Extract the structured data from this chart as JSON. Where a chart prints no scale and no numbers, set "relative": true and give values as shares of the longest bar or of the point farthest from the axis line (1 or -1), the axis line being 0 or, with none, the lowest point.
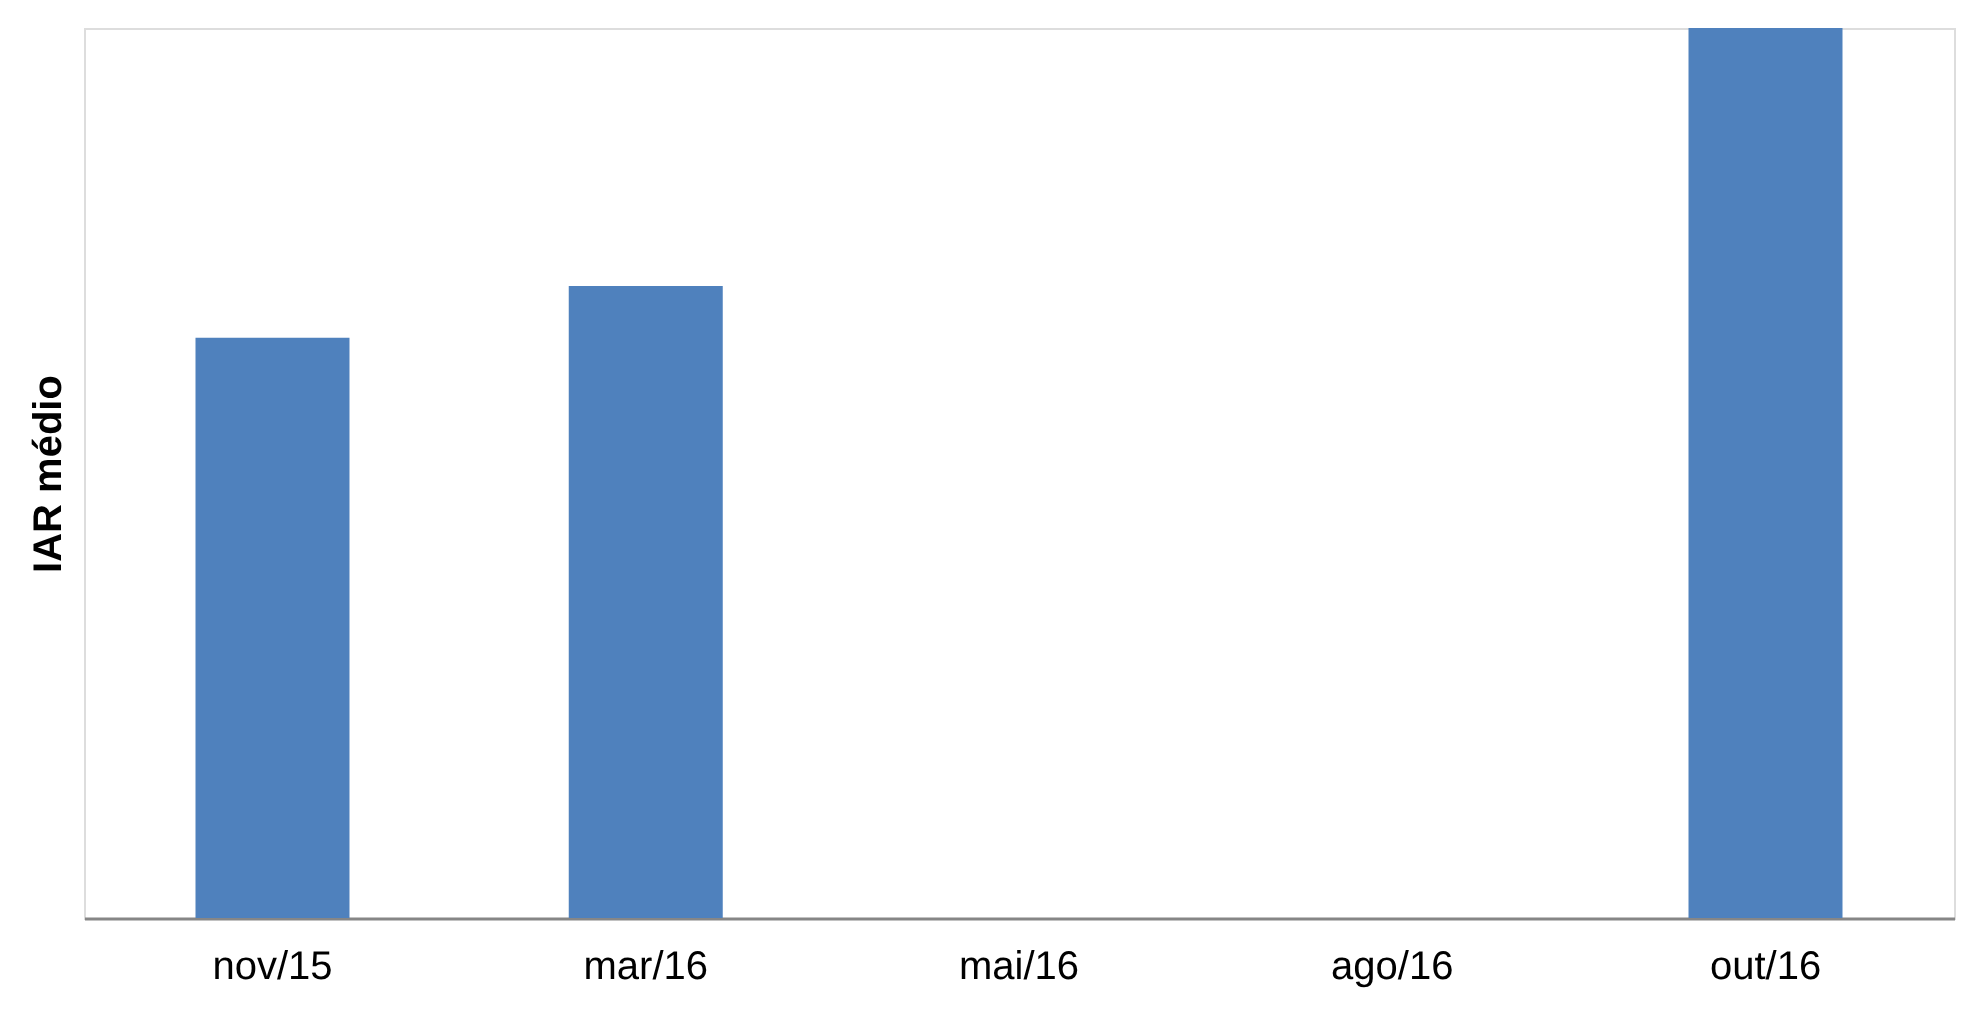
{
  "chart_data": {
    "type": "bar",
    "ylabel": "IAR médio",
    "relative": true,
    "color": "#4f81bd",
    "categories": [
      "nov/15",
      "mar/16",
      "mai/16",
      "ago/16",
      "out/16"
    ],
    "values": [
      0.652,
      0.71,
      null,
      null,
      1
    ]
  }
}
